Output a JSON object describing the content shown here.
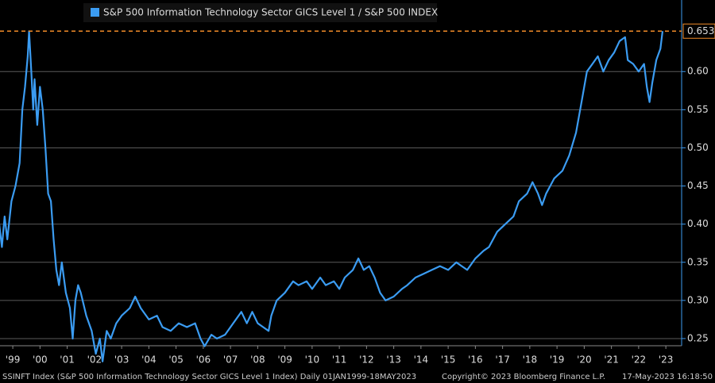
{
  "chart_data": {
    "type": "line",
    "series": [
      {
        "name": "S&P 500 Information Technology Sector GICS Level 1 / S&P 500 INDEX",
        "color": "#3b9cf2",
        "values": [
          0.4,
          0.37,
          0.41,
          0.38,
          0.43,
          0.45,
          0.48,
          0.55,
          0.58,
          0.62,
          0.653,
          0.6,
          0.55,
          0.59,
          0.53,
          0.58,
          0.55,
          0.5,
          0.44,
          0.43,
          0.38,
          0.34,
          0.32,
          0.35,
          0.31,
          0.29,
          0.25,
          0.3,
          0.32,
          0.31,
          0.28,
          0.26,
          0.23,
          0.25,
          0.22,
          0.26,
          0.25,
          0.27,
          0.28,
          0.29,
          0.305,
          0.29,
          0.275,
          0.28,
          0.265,
          0.26,
          0.27,
          0.265,
          0.27,
          0.25,
          0.24,
          0.255,
          0.25,
          0.255,
          0.27,
          0.285,
          0.27,
          0.285,
          0.27,
          0.265,
          0.26,
          0.28,
          0.3,
          0.31,
          0.325,
          0.32,
          0.325,
          0.315,
          0.33,
          0.32,
          0.325,
          0.315,
          0.33,
          0.34,
          0.355,
          0.34,
          0.345,
          0.33,
          0.31,
          0.3,
          0.305,
          0.315,
          0.32,
          0.33,
          0.335,
          0.34,
          0.345,
          0.34,
          0.35,
          0.345,
          0.34,
          0.355,
          0.365,
          0.37,
          0.39,
          0.4,
          0.41,
          0.43,
          0.44,
          0.455,
          0.44,
          0.425,
          0.44,
          0.46,
          0.47,
          0.49,
          0.52,
          0.56,
          0.6,
          0.61,
          0.62,
          0.6,
          0.615,
          0.625,
          0.64,
          0.645,
          0.615,
          0.61,
          0.6,
          0.61,
          0.58,
          0.56,
          0.585,
          0.615,
          0.63,
          0.653
        ]
      }
    ],
    "x": [
      1999.0,
      1999.1,
      1999.2,
      1999.3,
      1999.45,
      1999.6,
      1999.75,
      1999.85,
      1999.95,
      2000.05,
      2000.1,
      2000.18,
      2000.25,
      2000.3,
      2000.4,
      2000.5,
      2000.6,
      2000.7,
      2000.8,
      2000.9,
      2001.0,
      2001.1,
      2001.2,
      2001.3,
      2001.45,
      2001.6,
      2001.7,
      2001.8,
      2001.9,
      2002.0,
      2002.2,
      2002.4,
      2002.55,
      2002.7,
      2002.8,
      2002.95,
      2003.1,
      2003.3,
      2003.5,
      2003.8,
      2004.0,
      2004.2,
      2004.5,
      2004.8,
      2005.0,
      2005.3,
      2005.6,
      2005.9,
      2006.2,
      2006.4,
      2006.55,
      2006.8,
      2007.0,
      2007.3,
      2007.6,
      2007.9,
      2008.1,
      2008.3,
      2008.5,
      2008.7,
      2008.9,
      2009.0,
      2009.2,
      2009.5,
      2009.8,
      2010.0,
      2010.3,
      2010.5,
      2010.8,
      2011.0,
      2011.3,
      2011.5,
      2011.7,
      2012.0,
      2012.2,
      2012.4,
      2012.6,
      2012.8,
      2013.0,
      2013.2,
      2013.5,
      2013.8,
      2014.0,
      2014.3,
      2014.6,
      2014.9,
      2015.2,
      2015.5,
      2015.8,
      2016.0,
      2016.2,
      2016.5,
      2016.8,
      2017.0,
      2017.3,
      2017.6,
      2017.9,
      2018.1,
      2018.4,
      2018.6,
      2018.8,
      2018.95,
      2019.1,
      2019.4,
      2019.7,
      2019.95,
      2020.2,
      2020.4,
      2020.6,
      2020.8,
      2021.0,
      2021.2,
      2021.4,
      2021.6,
      2021.8,
      2022.0,
      2022.1,
      2022.3,
      2022.5,
      2022.7,
      2022.8,
      2022.9,
      2023.0,
      2023.15,
      2023.3,
      2023.38
    ],
    "xlim": [
      1999.03,
      2024.08
    ],
    "xticks": [
      {
        "value": 1999.5,
        "label": "'99"
      },
      {
        "value": 2000.5,
        "label": "'00"
      },
      {
        "value": 2001.5,
        "label": "'01"
      },
      {
        "value": 2002.5,
        "label": "'02"
      },
      {
        "value": 2003.5,
        "label": "'03"
      },
      {
        "value": 2004.5,
        "label": "'04"
      },
      {
        "value": 2005.5,
        "label": "'05"
      },
      {
        "value": 2006.5,
        "label": "'06"
      },
      {
        "value": 2007.5,
        "label": "'07"
      },
      {
        "value": 2008.5,
        "label": "'08"
      },
      {
        "value": 2009.5,
        "label": "'09"
      },
      {
        "value": 2010.5,
        "label": "'10"
      },
      {
        "value": 2011.5,
        "label": "'11"
      },
      {
        "value": 2012.5,
        "label": "'12"
      },
      {
        "value": 2013.5,
        "label": "'13"
      },
      {
        "value": 2014.5,
        "label": "'14"
      },
      {
        "value": 2015.5,
        "label": "'15"
      },
      {
        "value": 2016.5,
        "label": "'16"
      },
      {
        "value": 2017.5,
        "label": "'17"
      },
      {
        "value": 2018.5,
        "label": "'18"
      },
      {
        "value": 2019.5,
        "label": "'19"
      },
      {
        "value": 2020.5,
        "label": "'20"
      },
      {
        "value": 2021.5,
        "label": "'21"
      },
      {
        "value": 2022.5,
        "label": "'22"
      },
      {
        "value": 2023.5,
        "label": "'23"
      }
    ],
    "ylim": [
      0.2406,
      0.6938
    ],
    "yticks": [
      {
        "value": 0.25,
        "label": "0.25"
      },
      {
        "value": 0.3,
        "label": "0.30"
      },
      {
        "value": 0.35,
        "label": "0.35"
      },
      {
        "value": 0.4,
        "label": "0.40"
      },
      {
        "value": 0.45,
        "label": "0.45"
      },
      {
        "value": 0.5,
        "label": "0.50"
      },
      {
        "value": 0.55,
        "label": "0.55"
      },
      {
        "value": 0.6,
        "label": "0.60"
      }
    ],
    "grid": true,
    "last_value": 0.653,
    "last_value_color": "#f28c28",
    "footer": [
      "SSINFT Index (S&P 500 Information Technology Sector GICS Level 1 Index)  Daily 01JAN1999-18MAY2023",
      "Copyright© 2023 Bloomberg Finance L.P.",
      "17-May-2023 16:18:50"
    ]
  }
}
